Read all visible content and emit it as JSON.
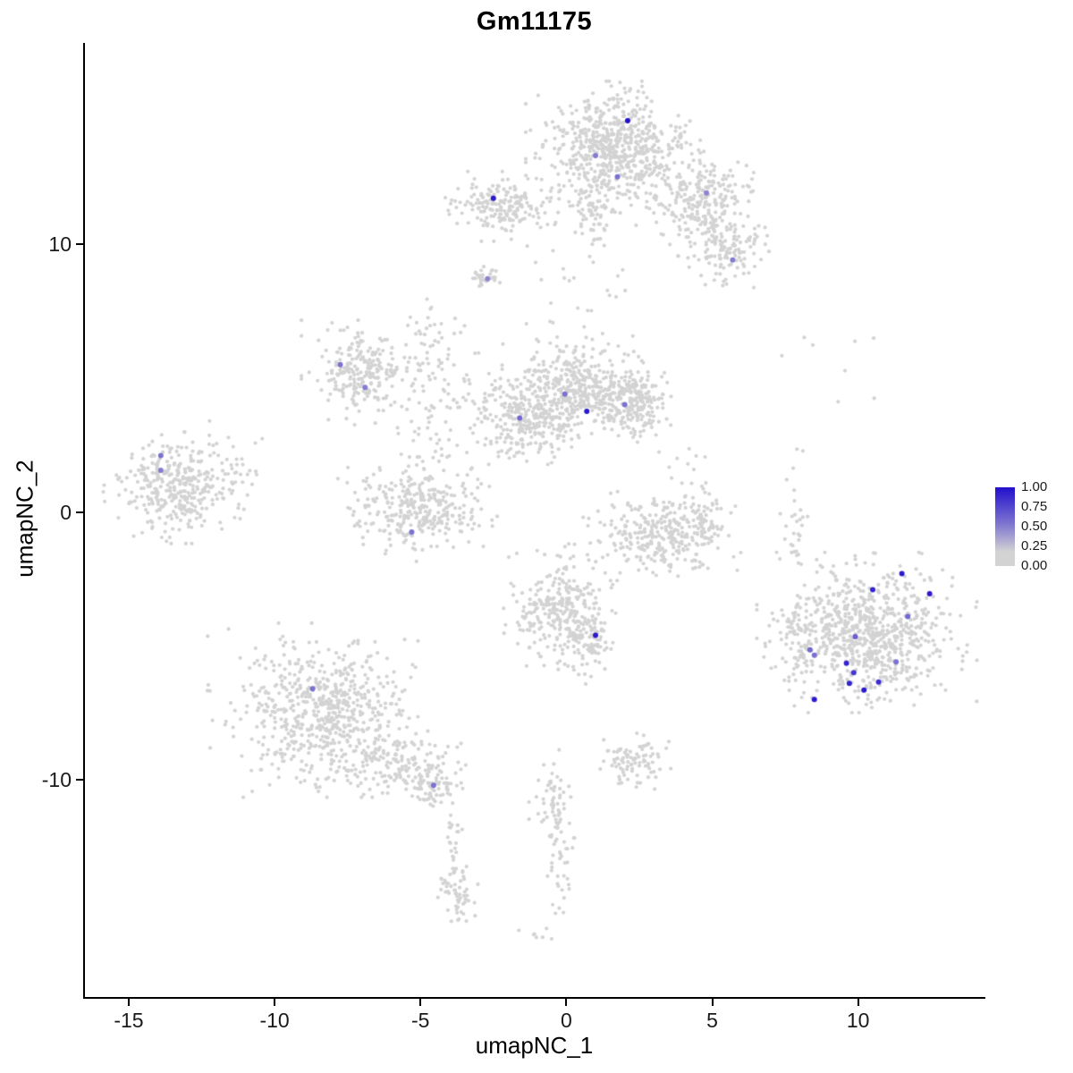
{
  "chart_data": {
    "type": "scatter",
    "title": "Gm11175",
    "xlabel": "umapNC_1",
    "ylabel": "umapNC_2",
    "xlim": [
      -16.5,
      14.3
    ],
    "ylim": [
      -18.1,
      17.5
    ],
    "x_ticks": [
      -15,
      -10,
      -5,
      0,
      5,
      10
    ],
    "y_ticks": [
      10,
      0,
      -10
    ],
    "grid": false,
    "legend": {
      "position": "right",
      "ticks": [
        "1.00",
        "0.75",
        "0.50",
        "0.25",
        "0.00"
      ],
      "low_color": "#d3d3d3",
      "high_color": "#2210cc"
    },
    "point_color_background": "#d3d3d3",
    "clusters": [
      {
        "x": 1.6,
        "y": 13.6,
        "sx": 1.15,
        "sy": 0.95,
        "n": 650
      },
      {
        "x": 4.6,
        "y": 11.5,
        "sx": 0.85,
        "sy": 0.75,
        "n": 260
      },
      {
        "x": 5.6,
        "y": 9.7,
        "sx": 0.55,
        "sy": 0.55,
        "n": 110
      },
      {
        "x": 1.0,
        "y": 11.2,
        "sx": 0.45,
        "sy": 0.9,
        "n": 80
      },
      {
        "x": -2.2,
        "y": 11.4,
        "sx": 0.75,
        "sy": 0.5,
        "n": 190
      },
      {
        "x": -2.7,
        "y": 8.75,
        "sx": 0.3,
        "sy": 0.22,
        "n": 28
      },
      {
        "x": -7.0,
        "y": 5.2,
        "sx": 0.8,
        "sy": 0.75,
        "n": 230
      },
      {
        "x": 0.2,
        "y": 4.5,
        "sx": 1.15,
        "sy": 0.8,
        "n": 520
      },
      {
        "x": 2.35,
        "y": 4.1,
        "sx": 0.55,
        "sy": 0.65,
        "n": 190
      },
      {
        "x": -1.2,
        "y": 3.2,
        "sx": 0.9,
        "sy": 0.55,
        "n": 160
      },
      {
        "x": -3.9,
        "y": 3.9,
        "sx": 1.3,
        "sy": 1.2,
        "n": 110
      },
      {
        "x": -4.6,
        "y": 6.3,
        "sx": 0.5,
        "sy": 0.9,
        "n": 45
      },
      {
        "x": -13.4,
        "y": 0.9,
        "sx": 0.95,
        "sy": 0.8,
        "n": 330
      },
      {
        "x": -11.6,
        "y": 1.4,
        "sx": 0.6,
        "sy": 0.9,
        "n": 40
      },
      {
        "x": -5.1,
        "y": 0.1,
        "sx": 1.05,
        "sy": 0.75,
        "n": 330
      },
      {
        "x": 3.3,
        "y": -0.9,
        "sx": 1.05,
        "sy": 0.65,
        "n": 280
      },
      {
        "x": 4.7,
        "y": -0.3,
        "sx": 0.4,
        "sy": 0.7,
        "n": 60
      },
      {
        "x": -0.2,
        "y": -3.6,
        "sx": 0.75,
        "sy": 0.95,
        "n": 300
      },
      {
        "x": 0.8,
        "y": -4.9,
        "sx": 0.35,
        "sy": 0.6,
        "n": 70
      },
      {
        "x": -8.4,
        "y": -7.4,
        "sx": 1.5,
        "sy": 1.25,
        "n": 650
      },
      {
        "x": -5.8,
        "y": -9.3,
        "sx": 1.0,
        "sy": 0.55,
        "n": 150
      },
      {
        "x": -4.5,
        "y": -10.3,
        "sx": 0.45,
        "sy": 0.35,
        "n": 60
      },
      {
        "x": -3.9,
        "y": -12.8,
        "sx": 0.2,
        "sy": 1.1,
        "n": 40
      },
      {
        "x": 2.4,
        "y": -9.3,
        "sx": 0.55,
        "sy": 0.4,
        "n": 90
      },
      {
        "x": -0.5,
        "y": -10.7,
        "sx": 0.3,
        "sy": 0.7,
        "n": 55
      },
      {
        "x": -0.3,
        "y": -13.0,
        "sx": 0.2,
        "sy": 1.2,
        "n": 40
      },
      {
        "x": -3.7,
        "y": -14.4,
        "sx": 0.3,
        "sy": 0.55,
        "n": 40
      },
      {
        "x": -1.1,
        "y": -15.8,
        "sx": 0.25,
        "sy": 0.2,
        "n": 7
      },
      {
        "x": 10.3,
        "y": -4.5,
        "sx": 1.45,
        "sy": 1.15,
        "n": 780
      },
      {
        "x": 8.0,
        "y": -4.9,
        "sx": 0.35,
        "sy": 0.9,
        "n": 70
      },
      {
        "x": 7.8,
        "y": -0.6,
        "sx": 0.18,
        "sy": 1.2,
        "n": 30
      },
      {
        "x": 9.0,
        "y": 5.5,
        "sx": 0.9,
        "sy": 1.0,
        "n": 8
      },
      {
        "x": 0.5,
        "y": 8.0,
        "sx": 1.2,
        "sy": 1.0,
        "n": 25
      },
      {
        "x": 3.9,
        "y": 1.6,
        "sx": 0.5,
        "sy": 0.5,
        "n": 12
      }
    ],
    "expressing_cells": [
      {
        "x": 2.1,
        "y": 14.6,
        "value": 1.0
      },
      {
        "x": 1.0,
        "y": 13.3,
        "value": 0.45
      },
      {
        "x": 1.75,
        "y": 12.5,
        "value": 0.5
      },
      {
        "x": 4.8,
        "y": 11.9,
        "value": 0.4
      },
      {
        "x": 5.7,
        "y": 9.4,
        "value": 0.45
      },
      {
        "x": -2.5,
        "y": 11.7,
        "value": 0.95
      },
      {
        "x": -2.7,
        "y": 8.7,
        "value": 0.4
      },
      {
        "x": -7.75,
        "y": 5.5,
        "value": 0.5
      },
      {
        "x": -6.9,
        "y": 4.65,
        "value": 0.45
      },
      {
        "x": -0.05,
        "y": 4.4,
        "value": 0.5
      },
      {
        "x": 0.7,
        "y": 3.75,
        "value": 0.95
      },
      {
        "x": 2.0,
        "y": 4.0,
        "value": 0.5
      },
      {
        "x": -1.6,
        "y": 3.5,
        "value": 0.55
      },
      {
        "x": -13.9,
        "y": 2.1,
        "value": 0.5
      },
      {
        "x": -13.9,
        "y": 1.55,
        "value": 0.45
      },
      {
        "x": -5.3,
        "y": -0.75,
        "value": 0.5
      },
      {
        "x": 1.0,
        "y": -4.6,
        "value": 0.95
      },
      {
        "x": -8.7,
        "y": -6.6,
        "value": 0.5
      },
      {
        "x": -4.55,
        "y": -10.2,
        "value": 0.5
      },
      {
        "x": 11.5,
        "y": -2.3,
        "value": 0.95
      },
      {
        "x": 10.5,
        "y": -2.9,
        "value": 0.9
      },
      {
        "x": 12.45,
        "y": -3.05,
        "value": 0.95
      },
      {
        "x": 11.7,
        "y": -3.9,
        "value": 0.55
      },
      {
        "x": 9.9,
        "y": -4.65,
        "value": 0.6
      },
      {
        "x": 8.35,
        "y": -5.15,
        "value": 0.55
      },
      {
        "x": 8.5,
        "y": -5.35,
        "value": 0.5
      },
      {
        "x": 9.6,
        "y": -5.65,
        "value": 0.9
      },
      {
        "x": 9.85,
        "y": -6.0,
        "value": 0.8
      },
      {
        "x": 9.7,
        "y": -6.4,
        "value": 0.9
      },
      {
        "x": 10.2,
        "y": -6.65,
        "value": 0.95
      },
      {
        "x": 10.7,
        "y": -6.35,
        "value": 0.85
      },
      {
        "x": 11.3,
        "y": -5.6,
        "value": 0.5
      },
      {
        "x": 8.5,
        "y": -7.0,
        "value": 0.95
      }
    ]
  }
}
